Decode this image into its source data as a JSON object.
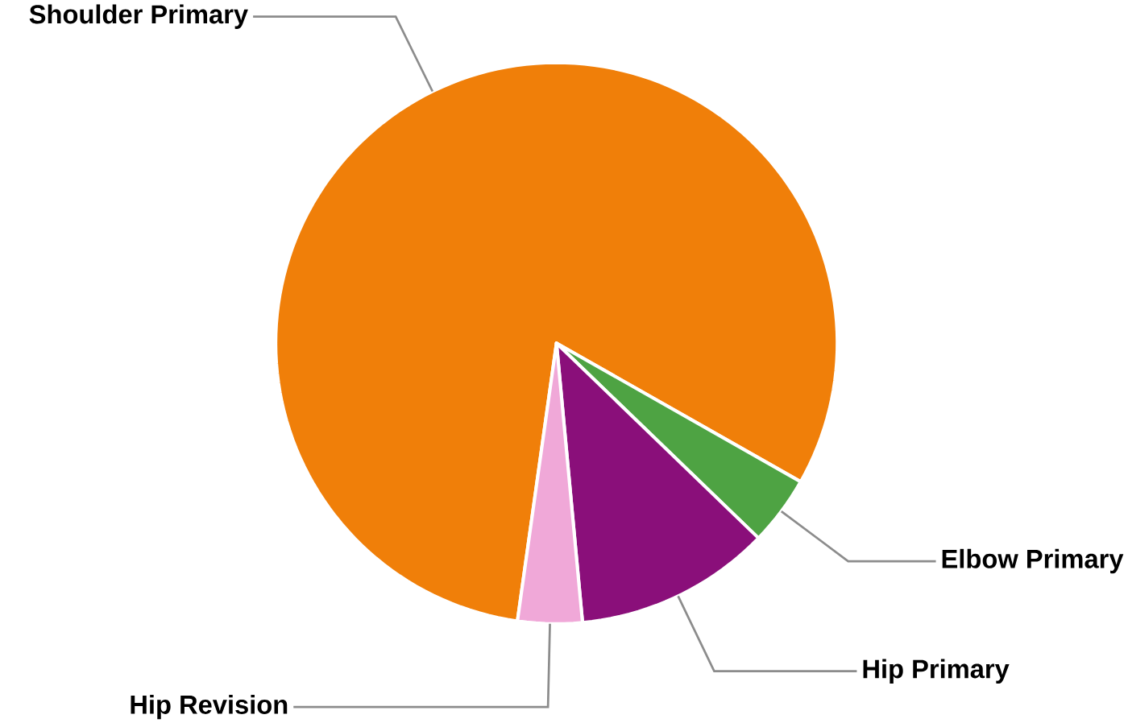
{
  "chart_data": {
    "type": "pie",
    "categories": [
      "Shoulder Primary",
      "Elbow Primary",
      "Hip Primary",
      "Hip Revision"
    ],
    "values": [
      81,
      4,
      11.3,
      3.7
    ],
    "colors": [
      "#f07f09",
      "#4ea343",
      "#8a0f7a",
      "#f0a8d8"
    ]
  }
}
